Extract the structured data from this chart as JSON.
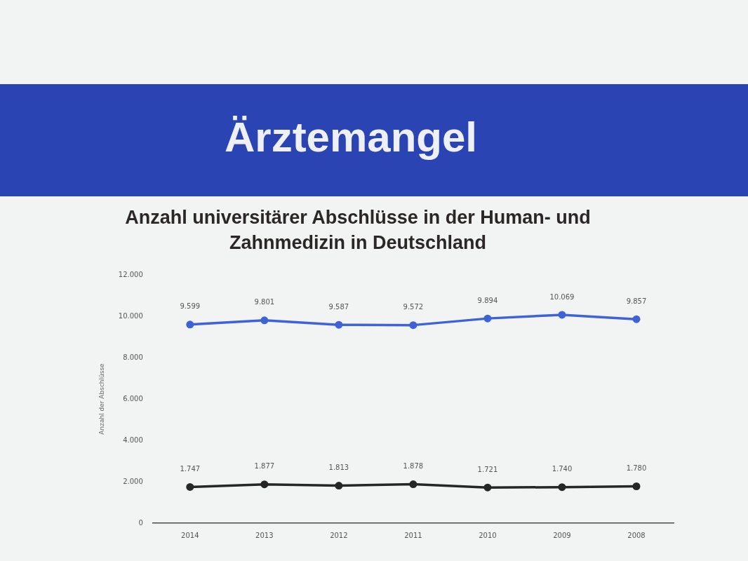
{
  "chart_data": {
    "type": "line",
    "title": "Ärztemangel",
    "subtitle": "Anzahl universitärer Abschlüsse in der Human- und Zahnmedizin in Deutschland",
    "ylabel": "Anzahl der Abschlüsse",
    "categories": [
      "2014",
      "2013",
      "2012",
      "2011",
      "2010",
      "2009",
      "2008"
    ],
    "series": [
      {
        "color": "#3d63d6",
        "values": [
          9599,
          9801,
          9587,
          9572,
          9894,
          10069,
          9857
        ],
        "value_labels": [
          "9.599",
          "9.801",
          "9.587",
          "9.572",
          "9.894",
          "10.069",
          "9.857"
        ]
      },
      {
        "color": "#262626",
        "values": [
          1747,
          1877,
          1813,
          1878,
          1721,
          1740,
          1780
        ],
        "value_labels": [
          "1.747",
          "1.877",
          "1.813",
          "1.878",
          "1.721",
          "1.740",
          "1.780"
        ]
      }
    ],
    "ylim": [
      0,
      12000
    ],
    "yticks": [
      {
        "value": 0,
        "label": "0"
      },
      {
        "value": 2000,
        "label": "2.000"
      },
      {
        "value": 4000,
        "label": "4.000"
      },
      {
        "value": 6000,
        "label": "6.000"
      },
      {
        "value": 8000,
        "label": "8.000"
      },
      {
        "value": 10000,
        "label": "10.000"
      },
      {
        "value": 12000,
        "label": "12.000"
      }
    ],
    "marker": "circle"
  }
}
